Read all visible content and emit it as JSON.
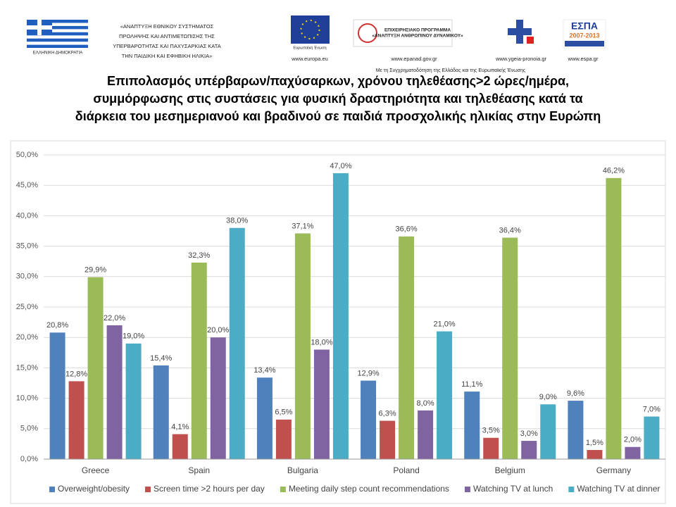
{
  "header": {
    "org_lines": [
      "«ΑΝΑΠΤΥΞΗ ΕΘΝΙΚΟΥ ΣΥΣΤΗΜΑΤΟΣ",
      "ΠΡΟΛΗΨΗΣ ΚΑΙ ΑΝΤΙΜΕΤΩΠΙΣΗΣ ΤΗΣ",
      "ΥΠΕΡΒΑΡΟΤΗΤΑΣ ΚΑΙ ΠΑΧΥΣΑΡΚΙΑΣ ΚΑΤΑ",
      "ΤΗΝ ΠΑΙΔΙΚΗ ΚΑΙ ΕΦΗΒΙΚΗ ΗΛΙΚΙΑ»"
    ],
    "country": "ΕΛΛΗΝΙΚΗ ΔΗΜΟΚΡΑΤΙΑ",
    "eu_label": "Ευρωπαϊκή Ένωση",
    "program_lines": [
      "ΕΠΙΧΕΙΡΗΣΙΑΚΟ ΠΡΟΓΡΑΜΜΑ",
      "«ΑΝΑΠΤΥΞΗ ΑΝΘΡΩΠΙΝΟΥ ΔΥΝΑΜΙΚΟΥ»"
    ],
    "espa": "ΕΣΠΑ",
    "espa_years": "2007-2013",
    "urls": [
      "www.europa.eu",
      "www.epanad.gov.gr",
      "www.ygeia-pronoia.gr",
      "www.espa.gr"
    ],
    "cofunding": "Με τη Συγχρηματοδότηση της Ελλάδας και της Ευρωπαϊκής Ένωσης"
  },
  "chart_data": {
    "type": "bar",
    "title": [
      "Επιπολασμός υπέρβαρων/παχύσαρκων, χρόνου τηλεθέασης>2 ώρες/ημέρα,",
      "συμμόρφωσης στις συστάσεις για φυσική δραστηριότητα και τηλεθέασης κατά τα",
      "διάρκεια του μεσημεριανού και βραδινού σε παιδιά προσχολικής ηλικίας στην Ευρώπη"
    ],
    "categories": [
      "Greece",
      "Spain",
      "Bulgaria",
      "Poland",
      "Belgium",
      "Germany"
    ],
    "series": [
      {
        "name": "Overweight/obesity",
        "color": "#4f81bd",
        "values": [
          20.8,
          15.4,
          13.4,
          12.9,
          11.1,
          9.6
        ],
        "value_labels": [
          "20,8%",
          "15,4%",
          "13,4%",
          "12,9%",
          "11,1%",
          "9,6%"
        ]
      },
      {
        "name": "Screen time >2 hours per day",
        "color": "#c0504d",
        "values": [
          12.8,
          4.1,
          6.5,
          6.3,
          3.5,
          1.5
        ],
        "value_labels": [
          "12,8%",
          "4,1%",
          "6,5%",
          "6,3%",
          "3,5%",
          "1,5%"
        ]
      },
      {
        "name": "Meeting daily step count recommendations",
        "color": "#9bbb59",
        "values": [
          29.9,
          32.3,
          37.1,
          36.6,
          36.4,
          46.2
        ],
        "value_labels": [
          "29,9%",
          "32,3%",
          "37,1%",
          "36,6%",
          "36,4%",
          "46,2%"
        ]
      },
      {
        "name": "Watching TV at lunch",
        "color": "#8064a2",
        "values": [
          22.0,
          20.0,
          18.0,
          8.0,
          3.0,
          2.0
        ],
        "value_labels": [
          "22,0%",
          "20,0%",
          "18,0%",
          "8,0%",
          "3,0%",
          "2,0%"
        ]
      },
      {
        "name": "Watching TV at dinner",
        "color": "#4bacc6",
        "values": [
          19.0,
          38.0,
          47.0,
          21.0,
          9.0,
          7.0
        ],
        "value_labels": [
          "19,0%",
          "38,0%",
          "47,0%",
          "21,0%",
          "9,0%",
          "7,0%"
        ]
      }
    ],
    "ylim": [
      0,
      50
    ],
    "yticks": [
      {
        "value": 0,
        "label": "0,0%"
      },
      {
        "value": 5,
        "label": "5,0%"
      },
      {
        "value": 10,
        "label": "10,0%"
      },
      {
        "value": 15,
        "label": "15,0%"
      },
      {
        "value": 20,
        "label": "20,0%"
      },
      {
        "value": 25,
        "label": "25,0%"
      },
      {
        "value": 30,
        "label": "30,0%"
      },
      {
        "value": 35,
        "label": "35,0%"
      },
      {
        "value": 40,
        "label": "40,0%"
      },
      {
        "value": 45,
        "label": "45,0%"
      },
      {
        "value": 50,
        "label": "50,0%"
      }
    ],
    "grid": true
  }
}
